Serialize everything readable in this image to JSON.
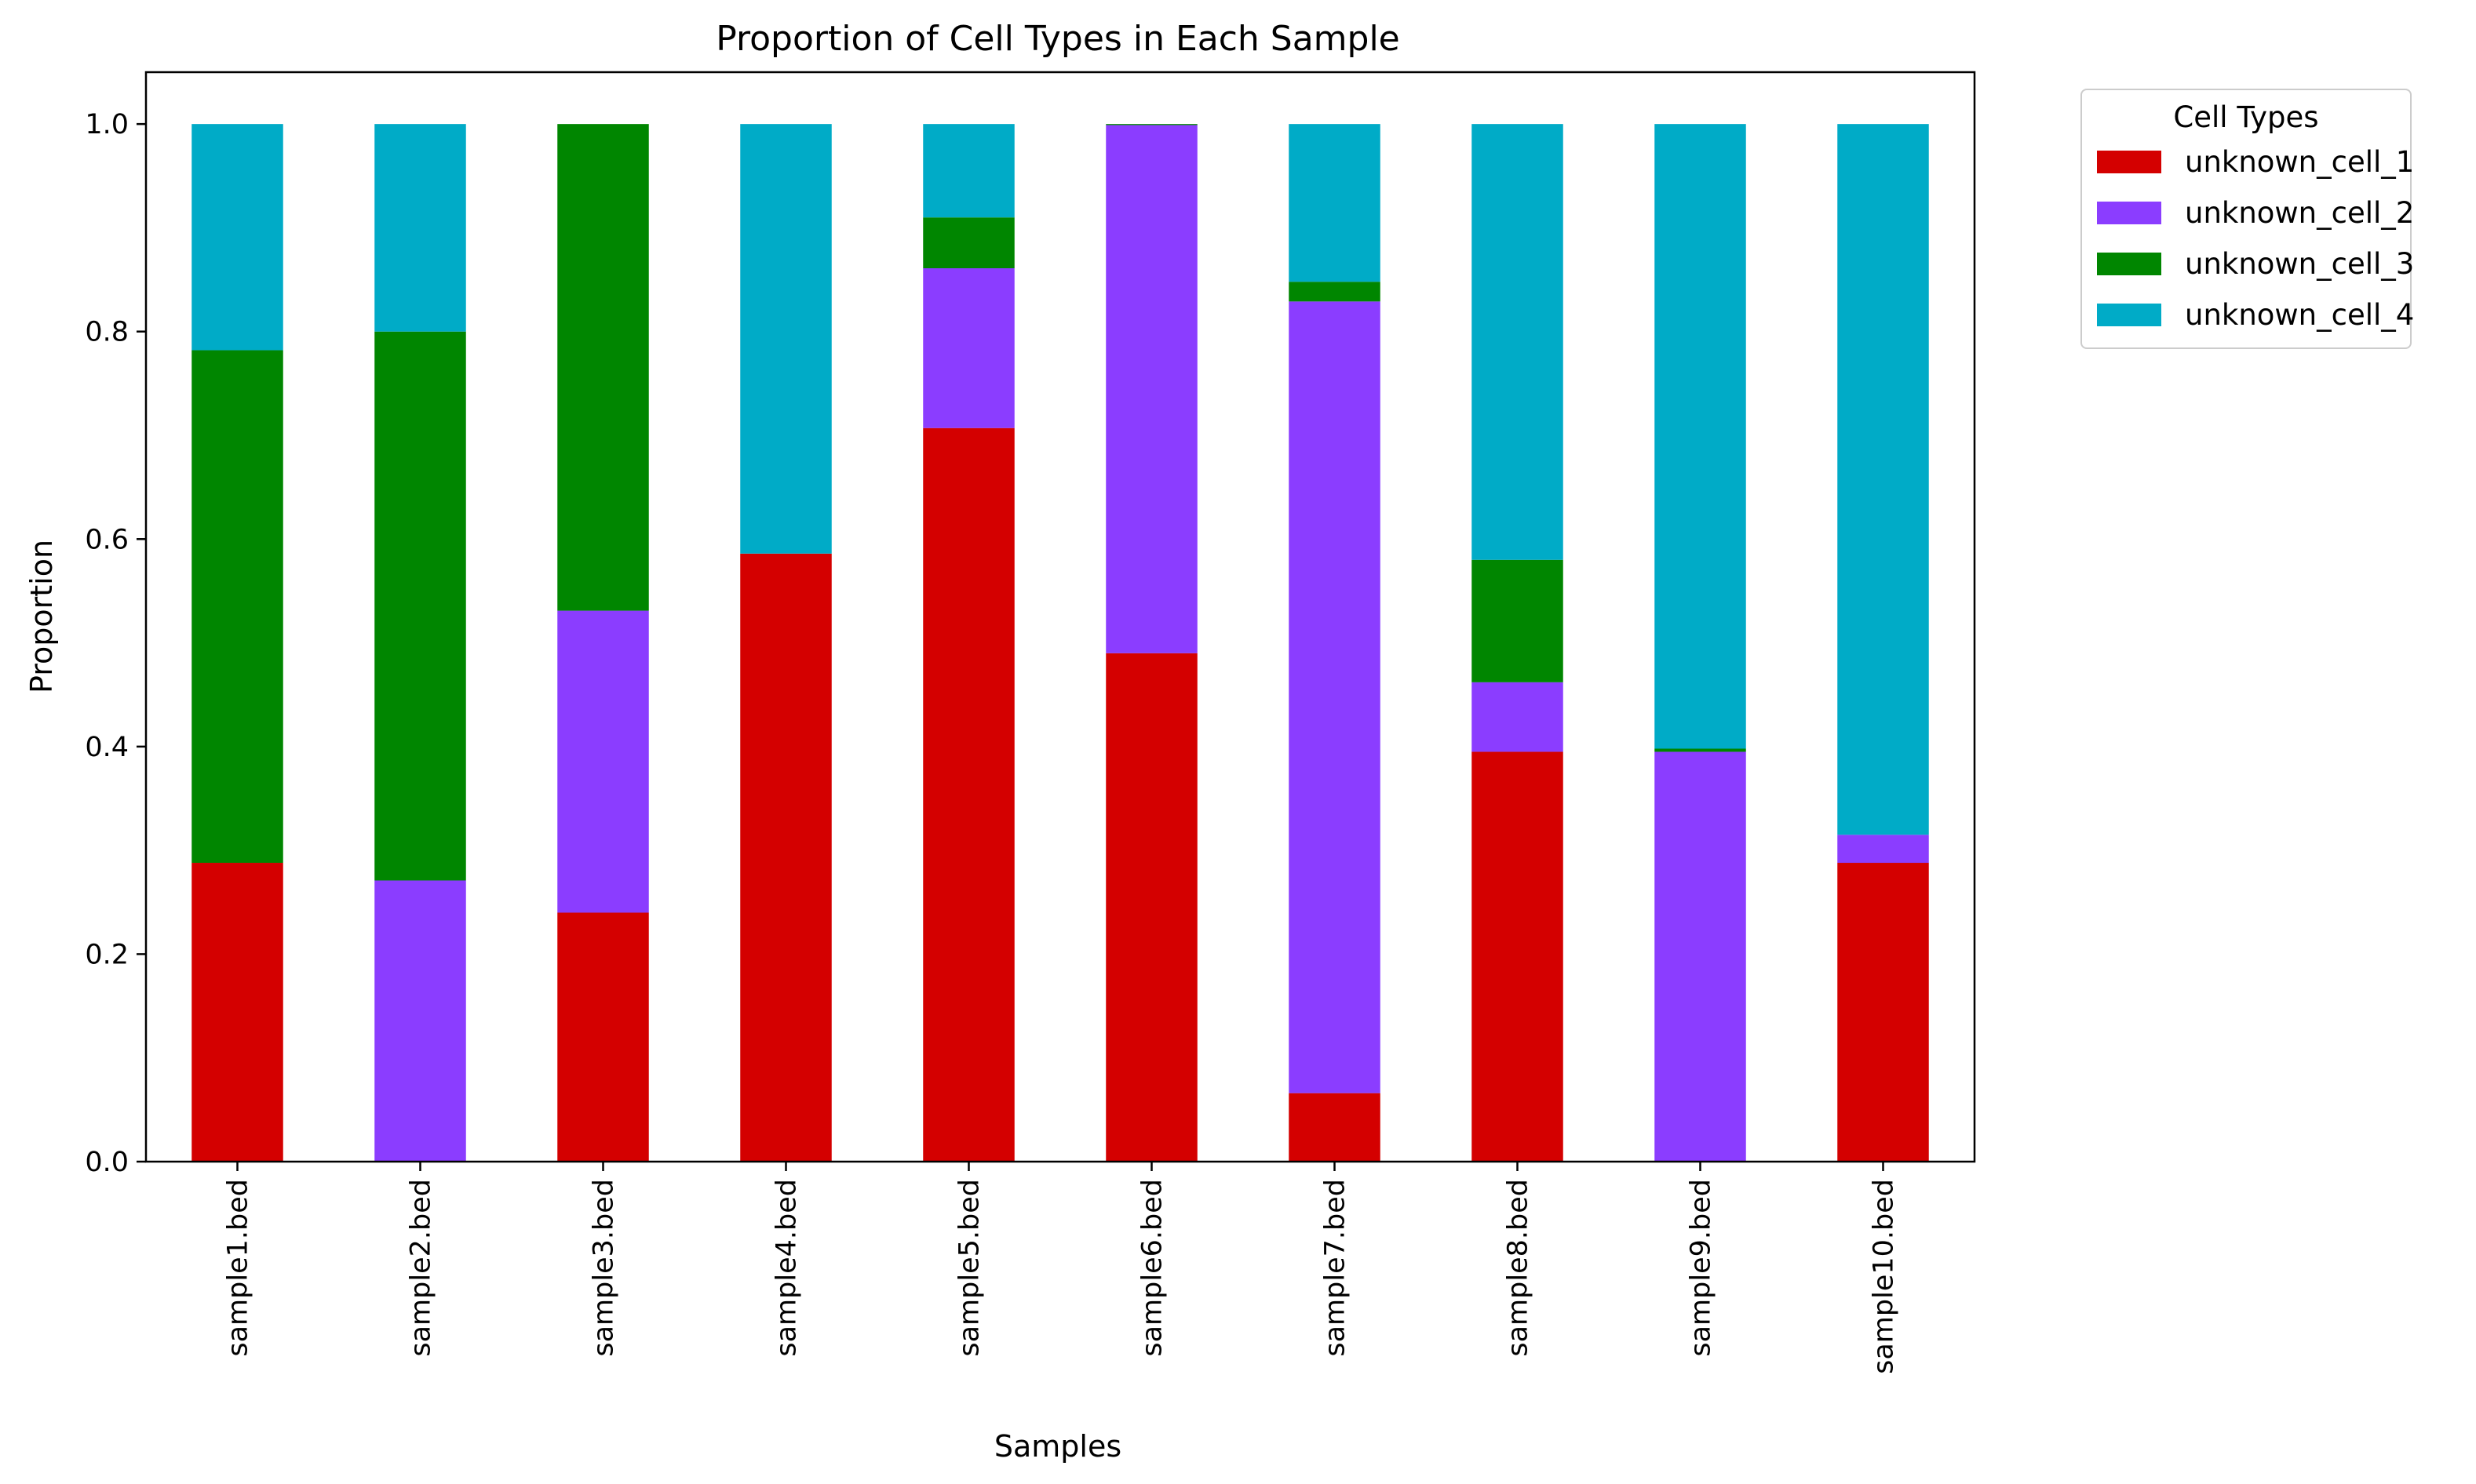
{
  "chart_data": {
    "type": "bar",
    "stacked": true,
    "title": "Proportion of Cell Types in Each Sample",
    "xlabel": "Samples",
    "ylabel": "Proportion",
    "ylim": [
      0,
      1.05
    ],
    "yticks": [
      "0.0",
      "0.2",
      "0.4",
      "0.6",
      "0.8",
      "1.0"
    ],
    "categories": [
      "sample1.bed",
      "sample2.bed",
      "sample3.bed",
      "sample4.bed",
      "sample5.bed",
      "sample6.bed",
      "sample7.bed",
      "sample8.bed",
      "sample9.bed",
      "sample10.bed"
    ],
    "legend_title": "Cell Types",
    "legend_position": "outside upper right",
    "grid": false,
    "series": [
      {
        "name": "unknown_cell_1",
        "color": "#d40000",
        "values": [
          0.288,
          0.0,
          0.24,
          0.586,
          0.707,
          0.49,
          0.066,
          0.395,
          0.0,
          0.288
        ]
      },
      {
        "name": "unknown_cell_2",
        "color": "#8b3dff",
        "values": [
          0.0,
          0.271,
          0.291,
          0.0,
          0.154,
          0.509,
          0.763,
          0.067,
          0.395,
          0.027
        ]
      },
      {
        "name": "unknown_cell_3",
        "color": "#008600",
        "values": [
          0.494,
          0.529,
          0.469,
          0.0,
          0.049,
          0.001,
          0.019,
          0.118,
          0.003,
          0.0
        ]
      },
      {
        "name": "unknown_cell_4",
        "color": "#00abc7",
        "values": [
          0.218,
          0.2,
          0.0,
          0.414,
          0.09,
          0.0,
          0.152,
          0.42,
          0.602,
          0.685
        ]
      }
    ]
  }
}
